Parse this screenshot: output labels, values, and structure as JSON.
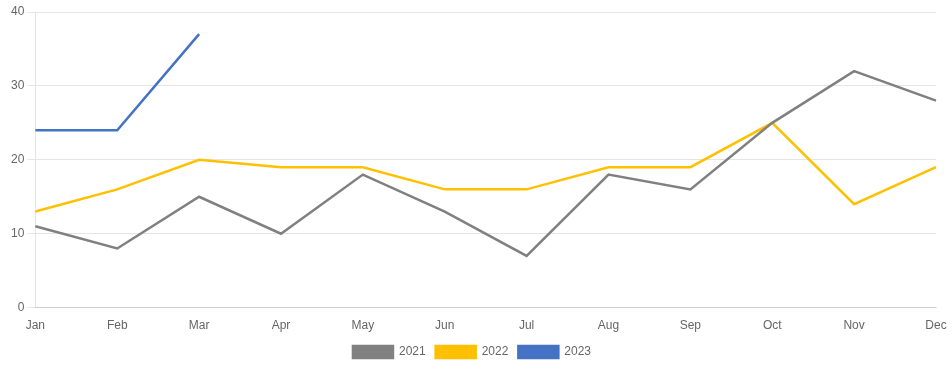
{
  "chart_data": {
    "type": "line",
    "categories": [
      "Jan",
      "Feb",
      "Mar",
      "Apr",
      "May",
      "Jun",
      "Jul",
      "Aug",
      "Sep",
      "Oct",
      "Nov",
      "Dec"
    ],
    "series": [
      {
        "name": "2021",
        "color": "#808080",
        "values": [
          11,
          8,
          15,
          10,
          18,
          13,
          7,
          18,
          16,
          25,
          32,
          28
        ]
      },
      {
        "name": "2022",
        "color": "#FFC000",
        "values": [
          13,
          16,
          20,
          19,
          19,
          16,
          16,
          19,
          19,
          25,
          14,
          19
        ]
      },
      {
        "name": "2023",
        "color": "#4472C4",
        "values": [
          24,
          24,
          37,
          null,
          null,
          null,
          null,
          null,
          null,
          null,
          null,
          null
        ]
      }
    ],
    "ylim": [
      0,
      40
    ],
    "yticks": [
      0,
      10,
      20,
      30,
      40
    ],
    "grid": true,
    "legend": "bottom"
  }
}
